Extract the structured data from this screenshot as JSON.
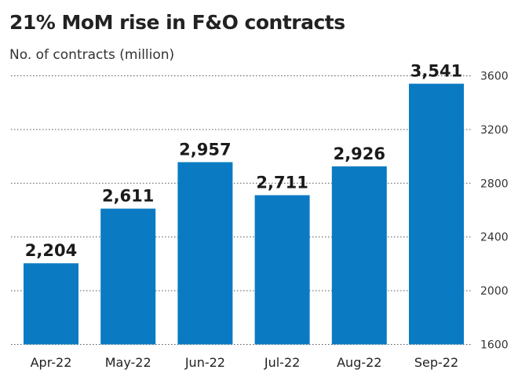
{
  "chart_data": {
    "type": "bar",
    "title": "21% MoM rise in F&O contracts",
    "subtitle": "No. of contracts (million)",
    "categories": [
      "Apr-22",
      "May-22",
      "Jun-22",
      "Jul-22",
      "Aug-22",
      "Sep-22"
    ],
    "values": [
      2204,
      2611,
      2957,
      2711,
      2926,
      3541
    ],
    "data_labels": [
      "2,204",
      "2,611",
      "2,957",
      "2,711",
      "2,926",
      "3,541"
    ],
    "xlabel": "",
    "ylabel": "",
    "ylim": [
      1600,
      3700
    ],
    "yticks": [
      1600,
      2000,
      2400,
      2800,
      3200,
      3600
    ],
    "ytick_labels": [
      "1600",
      "2000",
      "2400",
      "2800",
      "3200",
      "3600"
    ],
    "y_axis_side": "right",
    "grid": true,
    "legend": "none",
    "bar_color": "#0a7bc2"
  }
}
